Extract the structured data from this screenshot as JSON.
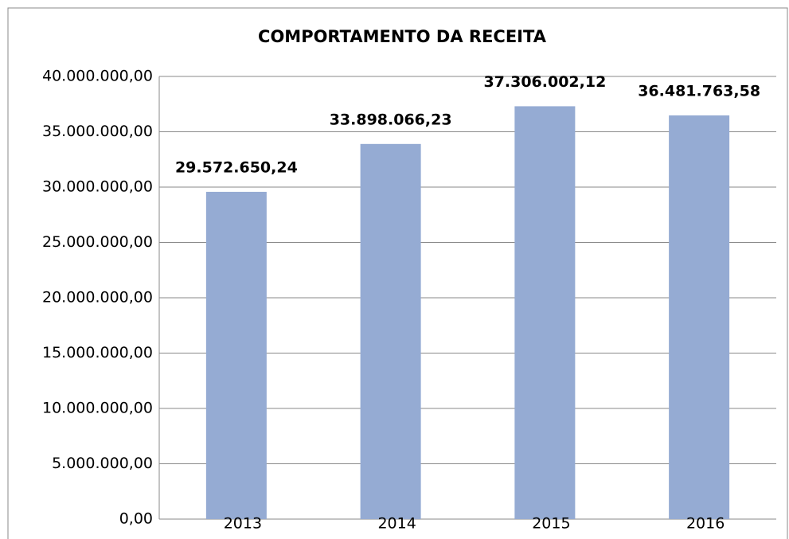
{
  "chart_data": {
    "type": "bar",
    "title": "COMPORTAMENTO DA RECEITA",
    "categories": [
      "2013",
      "2014",
      "2015",
      "2016"
    ],
    "values": [
      29572650.24,
      33898066.23,
      37306002.12,
      36481763.58
    ],
    "value_labels": [
      "29.572.650,24",
      "33.898.066,23",
      "37.306.002,12",
      "36.481.763,58"
    ],
    "color": "#95abd3",
    "ylim": [
      0,
      40000000
    ],
    "yticks": [
      {
        "value": 0,
        "label": "0,00"
      },
      {
        "value": 5000000,
        "label": "5.000.000,00"
      },
      {
        "value": 10000000,
        "label": "10.000.000,00"
      },
      {
        "value": 15000000,
        "label": "15.000.000,00"
      },
      {
        "value": 20000000,
        "label": "20.000.000,00"
      },
      {
        "value": 25000000,
        "label": "25.000.000,00"
      },
      {
        "value": 30000000,
        "label": "30.000.000,00"
      },
      {
        "value": 35000000,
        "label": "35.000.000,00"
      },
      {
        "value": 40000000,
        "label": "40.000.000,00"
      }
    ],
    "grid": true
  }
}
